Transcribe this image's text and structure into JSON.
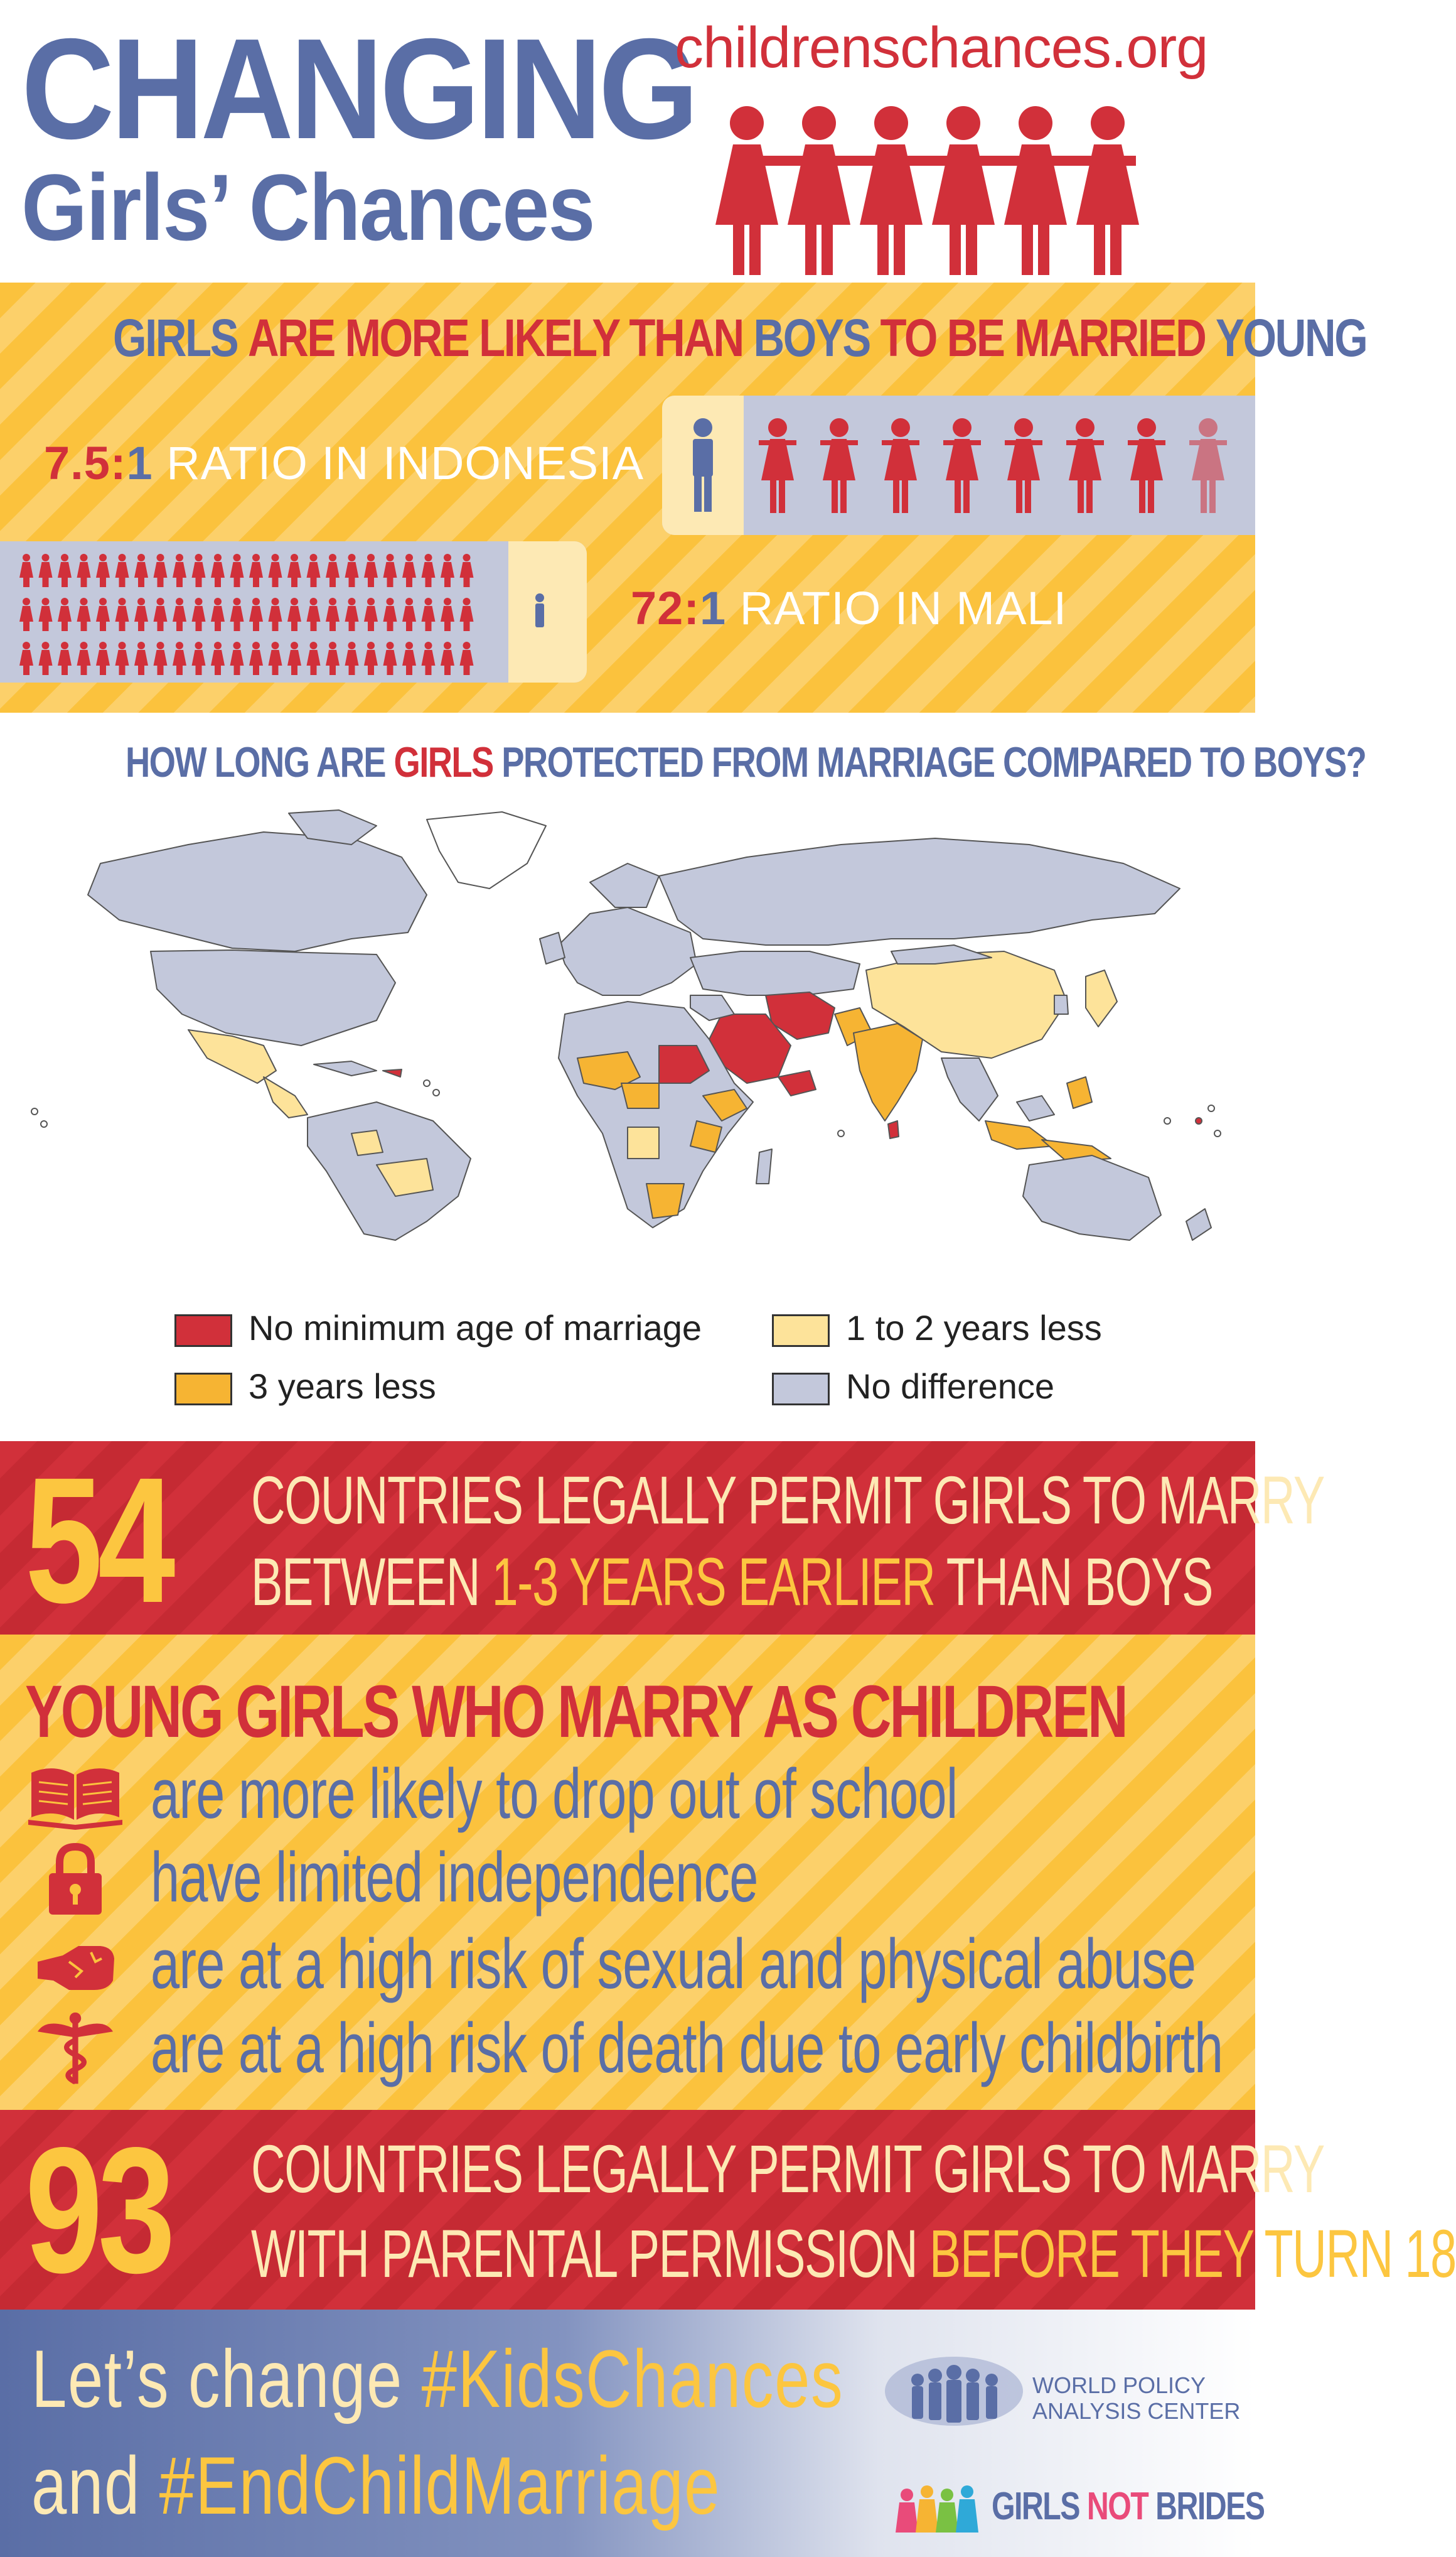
{
  "header": {
    "title_line1": "CHANGING",
    "title_line2": "Girls’ Chances",
    "website": "childrenschances.org"
  },
  "marriage_ratio": {
    "heading": {
      "w1": "GIRLS",
      "w2": "ARE MORE LIKELY THAN",
      "w3": "BOYS",
      "w4": "TO BE MARRIED",
      "w5": "YOUNG"
    },
    "indonesia": {
      "num": "7.5",
      "colon": ":",
      "one": "1",
      "label": "RATIO IN INDONESIA",
      "girls": 7.5,
      "boys": 1
    },
    "mali": {
      "num": "72",
      "colon": ":",
      "one": "1",
      "label": "RATIO IN MALI",
      "girls": 72,
      "boys": 1
    }
  },
  "map": {
    "heading_pre": "HOW LONG ARE",
    "heading_girls": "GIRLS",
    "heading_post": "PROTECTED FROM MARRIAGE COMPARED TO BOYS?",
    "legend": [
      {
        "label": "No minimum age of marriage",
        "color": "#d1303a"
      },
      {
        "label": "1 to 2 years less",
        "color": "#fde39a"
      },
      {
        "label": "3 years less",
        "color": "#f6b433"
      },
      {
        "label": "No difference",
        "color": "#c3c8db"
      }
    ]
  },
  "stat54": {
    "number": "54",
    "line1": "COUNTRIES LEGALLY PERMIT GIRLS TO MARRY",
    "line2_pre": "BETWEEN",
    "line2_hl": "1-3 YEARS EARLIER",
    "line2_post": "THAN BOYS"
  },
  "consequences": {
    "heading": "YOUNG GIRLS WHO MARRY AS CHILDREN",
    "items": [
      {
        "icon": "book-icon",
        "text": "are more likely to drop out of school"
      },
      {
        "icon": "lock-icon",
        "text": "have limited independence"
      },
      {
        "icon": "fist-icon",
        "text": "are at a high risk of sexual and physical abuse"
      },
      {
        "icon": "caduceus-icon",
        "text": "are at a high risk of death due to early childbirth"
      }
    ]
  },
  "stat93": {
    "number": "93",
    "line1": "COUNTRIES LEGALLY PERMIT GIRLS TO MARRY",
    "line2_pre": "WITH PARENTAL PERMISSION",
    "line2_hl": "BEFORE THEY TURN 18"
  },
  "footer": {
    "line1_pre": "Let’s change",
    "line1_tag": "#KidsChances",
    "line2_pre": "and",
    "line2_tag": "#EndChildMarriage",
    "wpac_line1": "WORLD POLICY",
    "wpac_line2": "ANALYSIS CENTER",
    "gnb_girls": "GIRLS",
    "gnb_not": "NOT",
    "gnb_brides": "BRIDES"
  },
  "colors": {
    "blue": "#5a6ea6",
    "red": "#d1303a",
    "yellow": "#fcc640",
    "cream": "#fde9b4",
    "grey": "#c3c8db"
  }
}
